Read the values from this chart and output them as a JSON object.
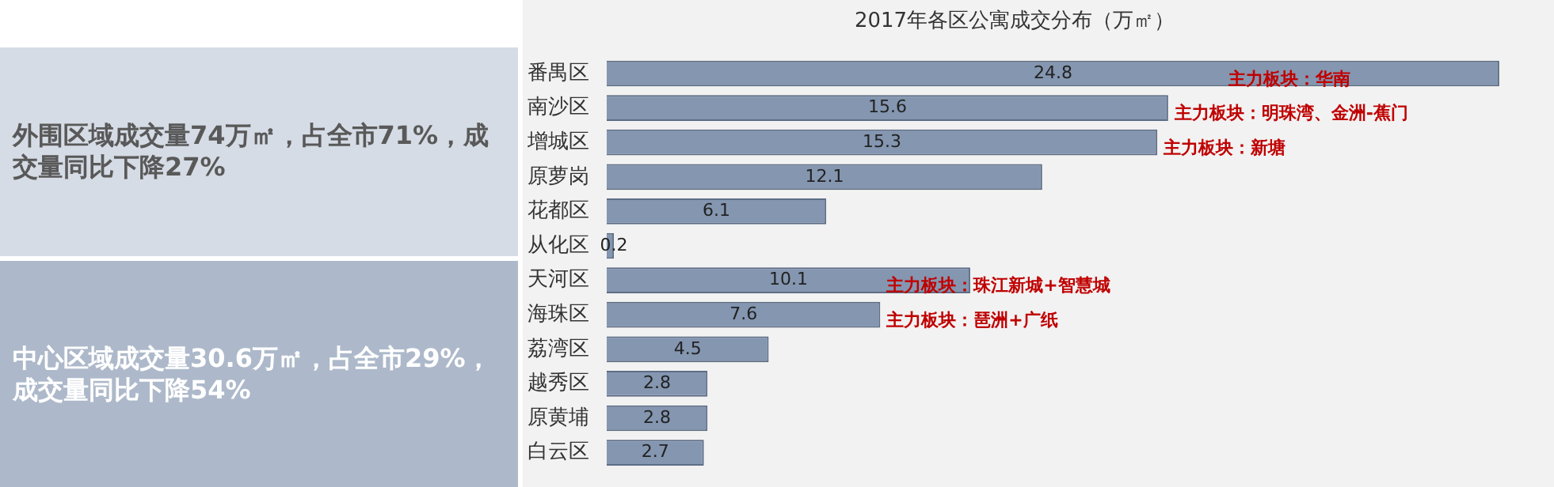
{
  "chart_data": {
    "type": "bar",
    "orientation": "horizontal",
    "title": "2017年各区公寓成交分布（万㎡）",
    "categories": [
      "番禺区",
      "南沙区",
      "增城区",
      "原萝岗",
      "花都区",
      "从化区",
      "天河区",
      "海珠区",
      "荔湾区",
      "越秀区",
      "原黄埔",
      "白云区"
    ],
    "values": [
      24.8,
      15.6,
      15.3,
      12.1,
      6.1,
      0.2,
      10.1,
      7.6,
      4.5,
      2.8,
      2.8,
      2.7
    ],
    "color": "#8496b0",
    "data_labels": true,
    "tick_labels": "y",
    "legend": false,
    "annotations": [
      {
        "text": "主力板块：华南",
        "x": 17.1,
        "y": "番禺区"
      },
      {
        "text": "主力板块：明珠湾、金洲-蕉门",
        "x": 15.6,
        "y": "南沙区"
      },
      {
        "text": "主力板块：新塘",
        "x": 15.3,
        "y": "增城区"
      },
      {
        "text": "主力板块：珠江新城+智慧城",
        "x": 7.6,
        "y": "天河区"
      },
      {
        "text": "主力板块：琶洲+广纸",
        "x": 7.6,
        "y": "海珠区"
      },
      "外围区域成交量74万㎡，占全市71%，成交量同比下降27%",
      "中心区域成交量30.6万㎡，占全市29%，成交量同比下降54%"
    ]
  }
}
